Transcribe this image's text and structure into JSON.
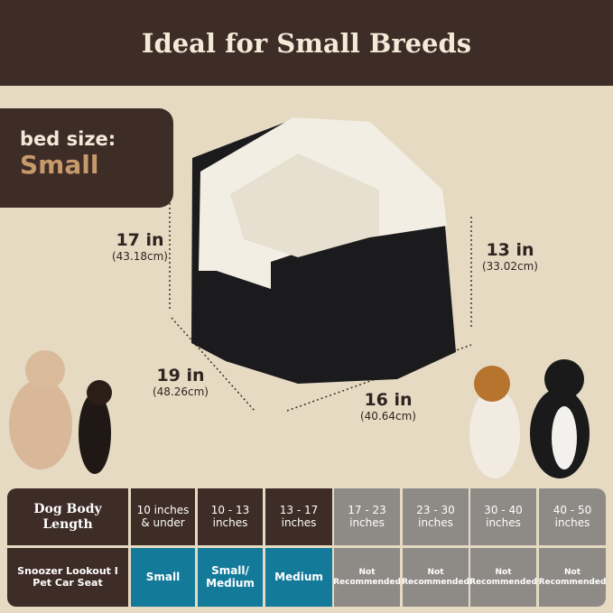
{
  "header": {
    "title": "Ideal for Small Breeds"
  },
  "bed_size": {
    "label": "bed size:",
    "value": "Small"
  },
  "dimensions": [
    {
      "in": "17 in",
      "cm": "(43.18cm)"
    },
    {
      "in": "13 in",
      "cm": "(33.02cm)"
    },
    {
      "in": "19 in",
      "cm": "(48.26cm)"
    },
    {
      "in": "16 in",
      "cm": "(40.64cm)"
    }
  ],
  "table": {
    "row1": [
      "Dog Body Length",
      "10 inches & under",
      "10 - 13 inches",
      "13 - 17 inches",
      "17 - 23 inches",
      "23 - 30 inches",
      "30 - 40 inches",
      "40 - 50 inches"
    ],
    "row2": [
      "Snoozer Lookout I Pet Car Seat",
      "Small",
      "Small/ Medium",
      "Medium",
      "Not Recommended",
      "Not Recommended",
      "Not Recommended",
      "Not Recommended"
    ]
  },
  "colors": {
    "brown": "#3e2c26",
    "blue": "#137a9a",
    "gray": "#8e8a86",
    "accent": "#c79a6b"
  }
}
